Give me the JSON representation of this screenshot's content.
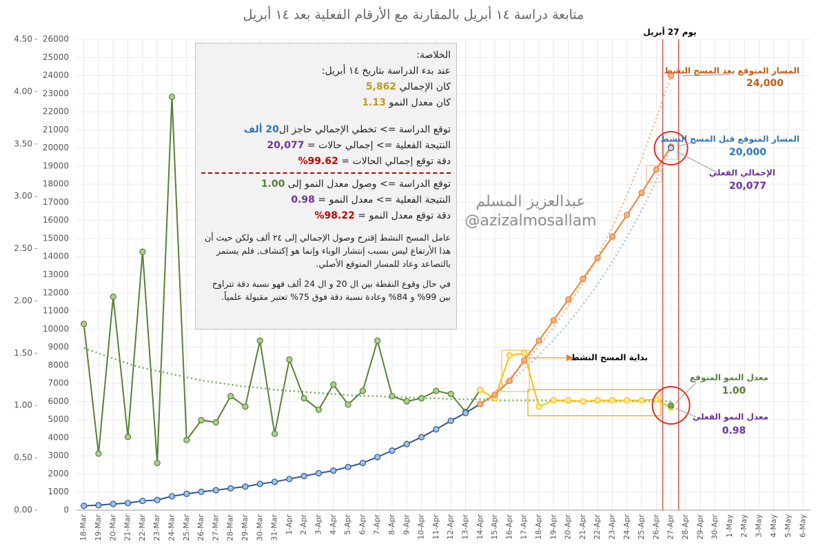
{
  "chart_data": {
    "type": "line",
    "title": "متابعة دراسة ١٤ أبريل بالمقارنة مع الأرقام الفعلية بعد ١٤ أبريل",
    "categories": [
      "18-Mar",
      "19-Mar",
      "20-Mar",
      "21-Mar",
      "22-Mar",
      "23-Mar",
      "24-Mar",
      "25-Mar",
      "26-Mar",
      "27-Mar",
      "28-Mar",
      "29-Mar",
      "30-Mar",
      "31-Mar",
      "1-Apr",
      "2-Apr",
      "3-Apr",
      "4-Apr",
      "5-Apr",
      "6-Apr",
      "7-Apr",
      "8-Apr",
      "9-Apr",
      "10-Apr",
      "11-Apr",
      "12-Apr",
      "13-Apr",
      "14-Apr",
      "15-Apr",
      "16-Apr",
      "17-Apr",
      "18-Apr",
      "19-Apr",
      "20-Apr",
      "21-Apr",
      "22-Apr",
      "23-Apr",
      "24-Apr",
      "25-Apr",
      "26-Apr",
      "27-Apr",
      "28-Apr",
      "29-Apr",
      "30-Apr",
      "1-May",
      "2-May",
      "3-May",
      "4-May",
      "5-May",
      "6-May"
    ],
    "ylim": [
      0,
      4.5
    ],
    "yticks": [
      {
        "value": 0,
        "label": "0.00"
      },
      {
        "value": 0.5,
        "label": "0.50"
      },
      {
        "value": 1,
        "label": "1.00"
      },
      {
        "value": 1.5,
        "label": "1.50"
      },
      {
        "value": 2,
        "label": "2.00"
      },
      {
        "value": 2.5,
        "label": "2.50"
      },
      {
        "value": 3,
        "label": "3.00"
      },
      {
        "value": 3.5,
        "label": "3.50"
      },
      {
        "value": 4,
        "label": "4.00"
      },
      {
        "value": 4.5,
        "label": "4.50"
      }
    ],
    "y2lim": [
      0,
      26000
    ],
    "y2ticks": [
      0,
      1000,
      2000,
      3000,
      4000,
      5000,
      6000,
      7000,
      8000,
      9000,
      10000,
      11000,
      12000,
      13000,
      14000,
      15000,
      16000,
      17000,
      18000,
      19000,
      20000,
      21000,
      22000,
      23000,
      24000,
      25000,
      26000
    ],
    "grid": true,
    "series": [
      {
        "axis": "y",
        "style": "dotted",
        "color": "#70ad47",
        "values": [
          1.55,
          1.5,
          1.45,
          1.4,
          1.36,
          1.33,
          1.3,
          1.27,
          1.24,
          1.22,
          1.2,
          1.18,
          1.17,
          1.15,
          1.14,
          1.13,
          1.12,
          1.11,
          1.1,
          1.09,
          1.09,
          1.08,
          1.08,
          1.07,
          1.07,
          1.06,
          1.06,
          1.06,
          1.05,
          1.05,
          1.05,
          1.05,
          1.05,
          1.04,
          1.04,
          1.04,
          1.04,
          1.04,
          1.04,
          1.04,
          1.04,
          null,
          null,
          null,
          null,
          null,
          null,
          null,
          null,
          null
        ]
      },
      {
        "axis": "y2",
        "style": "dotted",
        "color": "#f4b183",
        "values": [
          null,
          null,
          null,
          null,
          null,
          null,
          null,
          null,
          null,
          null,
          null,
          null,
          null,
          null,
          null,
          null,
          null,
          null,
          null,
          null,
          null,
          null,
          null,
          null,
          null,
          null,
          null,
          5862,
          6540,
          7290,
          8130,
          9060,
          10100,
          11260,
          12560,
          14000,
          15610,
          17410,
          19410,
          21640,
          24000,
          null,
          null,
          null,
          null,
          null,
          null,
          null,
          null,
          null
        ]
      },
      {
        "axis": "y2",
        "style": "dotted",
        "color": "#9dc3e6",
        "values": [
          null,
          null,
          null,
          null,
          null,
          null,
          null,
          null,
          null,
          null,
          null,
          null,
          null,
          null,
          null,
          null,
          null,
          null,
          null,
          null,
          null,
          null,
          null,
          null,
          null,
          null,
          null,
          5862,
          6442,
          7080,
          7781,
          8551,
          9398,
          10328,
          11351,
          12475,
          13710,
          15067,
          16559,
          18198,
          20000,
          null,
          null,
          null,
          null,
          null,
          null,
          null,
          null,
          null
        ]
      },
      {
        "axis": "y",
        "style": "line",
        "color": "#548235",
        "fill": "#a9d18e",
        "values": [
          1.78,
          0.54,
          2.04,
          0.7,
          2.47,
          0.45,
          3.95,
          0.67,
          0.86,
          0.84,
          1.09,
          0.99,
          1.62,
          0.73,
          1.44,
          1.07,
          0.96,
          1.2,
          1.01,
          1.14,
          1.62,
          1.09,
          1.04,
          1.07,
          1.14,
          1.11,
          0.94,
          1.15,
          null,
          null,
          null,
          null,
          null,
          null,
          null,
          null,
          null,
          null,
          null,
          null,
          null,
          null,
          null,
          null,
          null,
          null,
          null,
          null,
          null,
          null
        ]
      },
      {
        "axis": "y",
        "style": "line",
        "color": "#ffc000",
        "fill": "#ffe699",
        "values": [
          null,
          null,
          null,
          null,
          null,
          null,
          null,
          null,
          null,
          null,
          null,
          null,
          null,
          null,
          null,
          null,
          null,
          null,
          null,
          null,
          null,
          null,
          null,
          null,
          null,
          null,
          null,
          1.15,
          1.07,
          1.48,
          1.5,
          0.99,
          1.05,
          1.05,
          1.04,
          1.05,
          1.05,
          1.05,
          1.05,
          1.06,
          0.98,
          null,
          null,
          null,
          null,
          null,
          null,
          null,
          null,
          null
        ]
      },
      {
        "axis": "y2",
        "style": "line",
        "color": "#2f5597",
        "fill": "#9dc3e6",
        "values": [
          238,
          274,
          344,
          392,
          511,
          562,
          767,
          900,
          1012,
          1104,
          1203,
          1299,
          1453,
          1563,
          1720,
          1885,
          2039,
          2179,
          2385,
          2605,
          2932,
          3287,
          3651,
          4033,
          4462,
          4934,
          5369,
          5862,
          null,
          null,
          null,
          null,
          null,
          null,
          null,
          null,
          null,
          null,
          null,
          null,
          null,
          null,
          null,
          null,
          null,
          null,
          null,
          null,
          null,
          null
        ]
      },
      {
        "axis": "y2",
        "style": "line",
        "color": "#ed7d31",
        "fill": "#f4b183",
        "values": [
          null,
          null,
          null,
          null,
          null,
          null,
          null,
          null,
          null,
          null,
          null,
          null,
          null,
          null,
          null,
          null,
          null,
          null,
          null,
          null,
          null,
          null,
          null,
          null,
          null,
          null,
          null,
          5862,
          6380,
          7142,
          8274,
          9362,
          10484,
          11631,
          12772,
          13930,
          15102,
          16299,
          17522,
          18811,
          20077,
          null,
          null,
          null,
          null,
          null,
          null,
          null,
          null,
          null
        ]
      },
      {
        "axis": "y2",
        "style": "points",
        "color": "#ed7d31",
        "fill": "#f4b183",
        "values": [
          null,
          null,
          null,
          null,
          null,
          null,
          null,
          null,
          null,
          null,
          null,
          null,
          null,
          null,
          null,
          null,
          null,
          null,
          null,
          null,
          null,
          null,
          null,
          null,
          null,
          null,
          null,
          null,
          null,
          null,
          null,
          null,
          null,
          null,
          null,
          null,
          null,
          null,
          null,
          null,
          24000,
          null,
          null,
          null,
          null,
          null,
          null,
          null,
          null,
          null
        ]
      },
      {
        "axis": "y2",
        "style": "points",
        "color": "#2f5597",
        "fill": "#bdd7ee",
        "values": [
          null,
          null,
          null,
          null,
          null,
          null,
          null,
          null,
          null,
          null,
          null,
          null,
          null,
          null,
          null,
          null,
          null,
          null,
          null,
          null,
          null,
          null,
          null,
          null,
          null,
          null,
          null,
          null,
          null,
          null,
          null,
          null,
          null,
          null,
          null,
          null,
          null,
          null,
          null,
          null,
          20000,
          null,
          null,
          null,
          null,
          null,
          null,
          null,
          null,
          null
        ]
      },
      {
        "axis": "y",
        "style": "points",
        "color": "#548235",
        "fill": "#70ad47",
        "values": [
          null,
          null,
          null,
          null,
          null,
          null,
          null,
          null,
          null,
          null,
          null,
          null,
          null,
          null,
          null,
          null,
          null,
          null,
          null,
          null,
          null,
          null,
          null,
          null,
          null,
          null,
          null,
          null,
          null,
          null,
          null,
          null,
          null,
          null,
          null,
          null,
          null,
          null,
          null,
          null,
          1.0,
          null,
          null,
          null,
          null,
          null,
          null,
          null,
          null,
          null
        ]
      }
    ],
    "annotations": [
      {
        "text": "يوم 27 أبريل",
        "color": "#000000"
      },
      {
        "text": "المسار المتوقع بعد المسح النشط",
        "value": "24,000",
        "color": "#c55a11"
      },
      {
        "text": "المسار المتوقع قبل المسح النشط",
        "value": "20,000",
        "color": "#2e75b6"
      },
      {
        "text": "الإجمالي الفعلي",
        "value": "20,077",
        "color": "#7030a0"
      },
      {
        "text": "بداية المسح النشط",
        "color": "#000000"
      },
      {
        "text": "معدل النمو المتوقع",
        "value": "1.00",
        "color": "#548235"
      },
      {
        "text": "معدل النمو الفعلي",
        "value": "0.98",
        "color": "#7030a0"
      }
    ],
    "watermark": [
      "عبدالعزيز المسلم",
      "@azizalmosallam"
    ],
    "summary": {
      "lines": [
        {
          "text": "الخلاصة:"
        },
        {
          "text": "عند بدء الدراسة بتاريخ ١٤ أبريل:"
        },
        {
          "text": "كان الإجمالي ",
          "value": "5,862",
          "color": "#c8961e"
        },
        {
          "text": "كان معدل النمو ",
          "value": "1.13",
          "color": "#c8961e"
        },
        {
          "text": "توقع الدراسة => تخطي الإجمالي حاجز ال",
          "value": "20 ألف",
          "color": "#2e75b6"
        },
        {
          "text": "النتيجة الفعلية => إجمالي حالات = ",
          "value": "20,077",
          "color": "#7030a0"
        },
        {
          "text": "دقة توقع إجمالي الحالات = ",
          "value": "99.62%",
          "color": "#c00000"
        },
        {
          "text": "توقع الدراسة => وصول معدل النمو إلى ",
          "value": "1.00",
          "color": "#548235"
        },
        {
          "text": "النتيجة الفعلية => معدل النمو = ",
          "value": "0.98",
          "color": "#7030a0"
        },
        {
          "text": "دقة توقع معدل النمو = ",
          "value": "98.22%",
          "color": "#c00000"
        }
      ],
      "notes": [
        "عامل المسح النشط إقترح وصول الإجمالي إلى ٢٤ ألف ولكن حيث أن هذا الأرتفاع ليس بسبب إنتشار الوباء وإنما هو إكتشاف, فلم يستمر بالتصاعد وعاد للمسار المتوقع الأصلي.",
        "في حال وقوع النقطة بين ال 20 و ال 24 ألف فهو نسبة دقة تتراوح بين 99% و 84% وعادة نسبة دقة فوق 75% تعتبر مقبولة علمياً."
      ]
    }
  }
}
